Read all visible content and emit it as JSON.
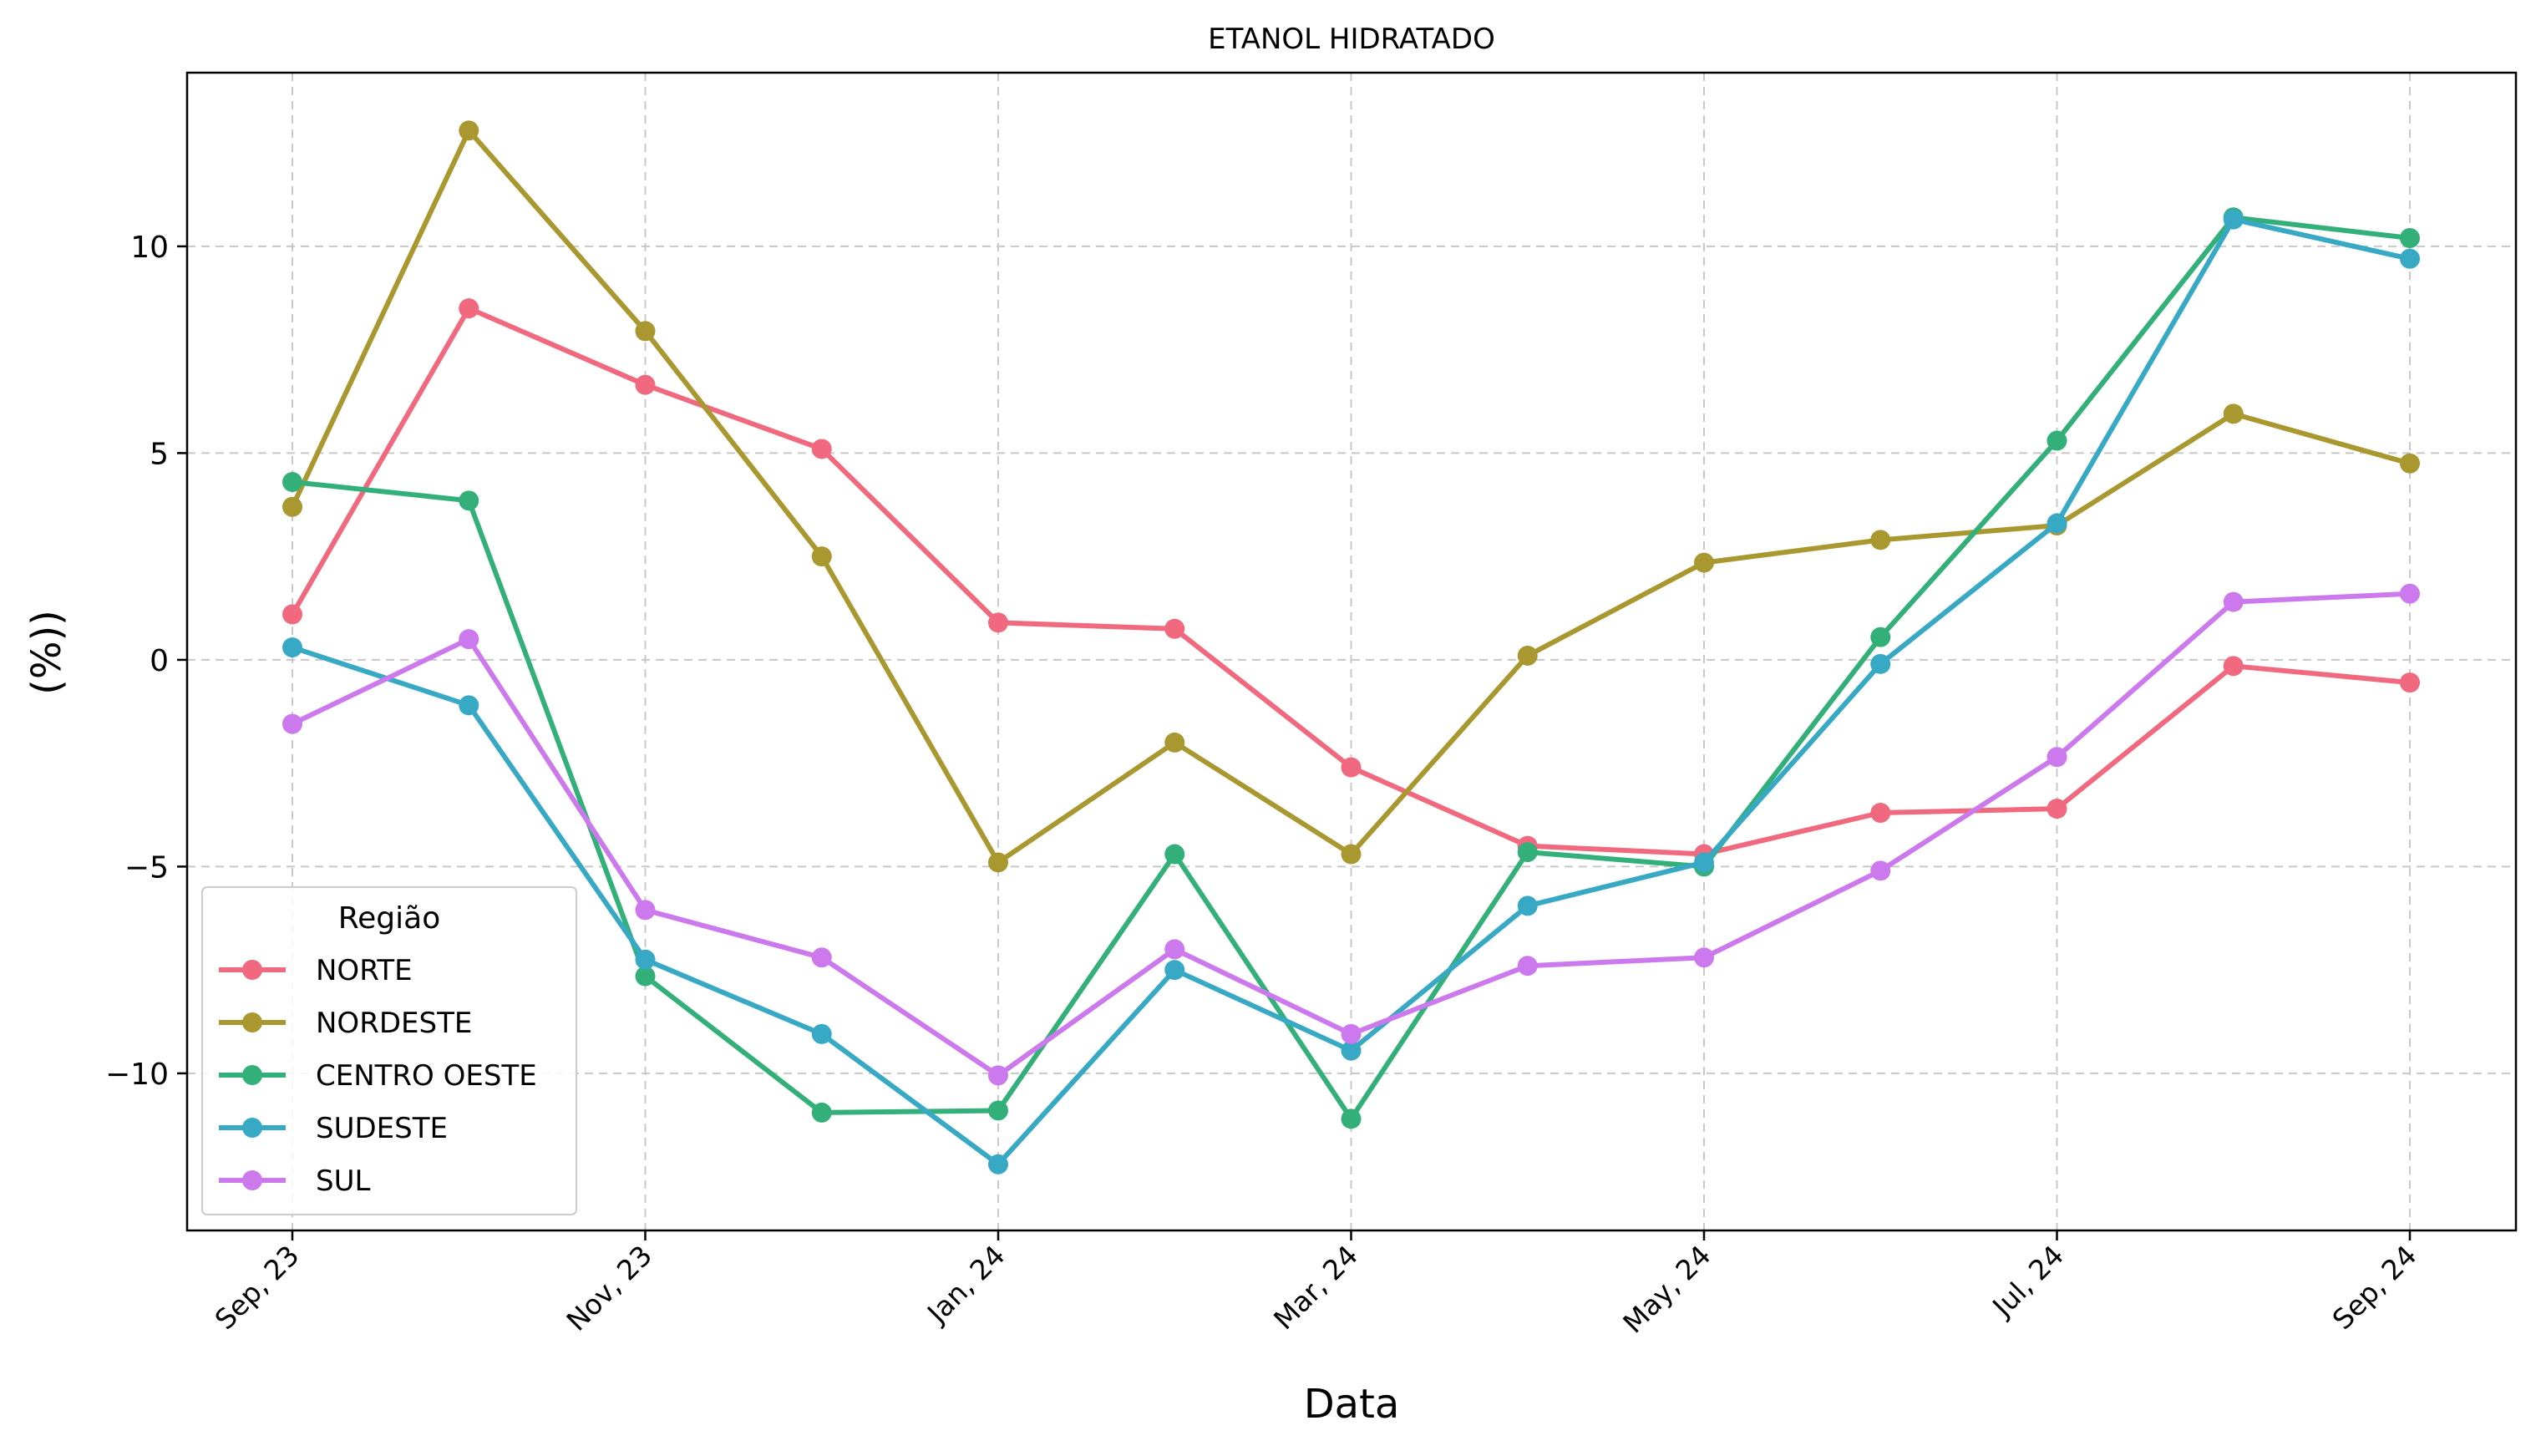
{
  "chart_data": {
    "type": "line",
    "title": "ETANOL HIDRATADO",
    "xlabel": "Data",
    "ylabel": "(%))",
    "x": [
      "2023-09",
      "2023-10",
      "2023-11",
      "2023-12",
      "2024-01",
      "2024-02",
      "2024-03",
      "2024-04",
      "2024-05",
      "2024-06",
      "2024-07",
      "2024-08",
      "2024-09"
    ],
    "x_ticks": [
      "Sep, 23",
      "Nov, 23",
      "Jan, 24",
      "Mar, 24",
      "May, 24",
      "Jul, 24",
      "Sep, 24"
    ],
    "y_ticks": [
      -10,
      -5,
      0,
      5,
      10
    ],
    "y_tick_labels": [
      "−10",
      "−5",
      "0",
      "5",
      "10"
    ],
    "ylim": [
      -13.8,
      14.2
    ],
    "grid": true,
    "legend": {
      "title": "Região",
      "position": "lower-left"
    },
    "series": [
      {
        "name": "NORTE",
        "color": "#f0697f",
        "values": [
          1.1,
          8.5,
          6.65,
          5.1,
          0.9,
          0.75,
          -2.6,
          -4.5,
          -4.7,
          -3.7,
          -3.6,
          -0.15,
          -0.55
        ]
      },
      {
        "name": "NORDESTE",
        "color": "#a8982f",
        "values": [
          3.7,
          12.8,
          7.95,
          2.5,
          -4.9,
          -2.0,
          -4.7,
          0.1,
          2.35,
          2.9,
          3.25,
          5.95,
          4.75
        ]
      },
      {
        "name": "CENTRO OESTE",
        "color": "#33b07a",
        "values": [
          4.3,
          3.85,
          -7.65,
          -10.95,
          -10.9,
          -4.7,
          -11.1,
          -4.65,
          -5.0,
          0.55,
          5.3,
          10.7,
          10.2
        ]
      },
      {
        "name": "SUDESTE",
        "color": "#38a9c5",
        "values": [
          0.3,
          -1.1,
          -7.25,
          -9.05,
          -12.2,
          -7.5,
          -9.45,
          -5.95,
          -4.9,
          -0.1,
          3.3,
          10.65,
          9.7
        ]
      },
      {
        "name": "SUL",
        "color": "#cc79ee",
        "values": [
          -1.55,
          0.5,
          -6.05,
          -7.2,
          -10.05,
          -7.0,
          -9.05,
          -7.4,
          -7.2,
          -5.1,
          -2.35,
          1.4,
          1.6
        ]
      }
    ]
  }
}
